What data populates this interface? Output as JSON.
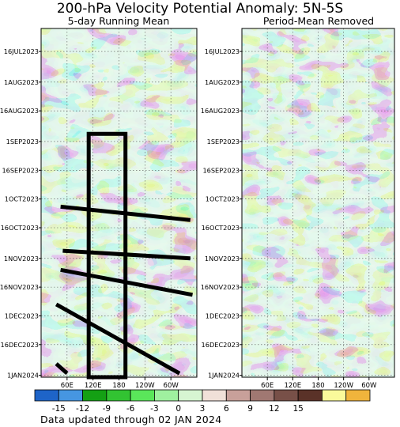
{
  "chart_data": [
    {
      "type": "heatmap",
      "title": "200-hPa Velocity Potential Anomaly: 5N-5S",
      "subtitle": "5-day Running Mean",
      "x_ticks": [
        "60E",
        "120E",
        "180",
        "120W",
        "60W"
      ],
      "y_ticks": [
        "16JUL2023",
        "1AUG2023",
        "16AUG2023",
        "1SEP2023",
        "16SEP2023",
        "1OCT2023",
        "16OCT2023",
        "1NOV2023",
        "16NOV2023",
        "1DEC2023",
        "16DEC2023",
        "1JAN2024"
      ],
      "xlim": [
        0,
        360
      ],
      "ylim": [
        "2023-07-04",
        "2024-01-02"
      ],
      "annotations": {
        "rectangle": {
          "x": [
            110,
            195
          ],
          "y": [
            "2023-08-28",
            "2024-01-02"
          ]
        },
        "lines": [
          {
            "x": [
              45,
              345
            ],
            "y": [
              "2023-10-05",
              "2023-10-12"
            ]
          },
          {
            "x": [
              50,
              345
            ],
            "y": [
              "2023-10-28",
              "2023-11-01"
            ]
          },
          {
            "x": [
              45,
              350
            ],
            "y": [
              "2023-11-07",
              "2023-11-20"
            ]
          },
          {
            "x": [
              35,
              320
            ],
            "y": [
              "2023-11-25",
              "2023-12-31"
            ]
          },
          {
            "x": [
              35,
              60
            ],
            "y": [
              "2023-12-26",
              "2023-12-31"
            ]
          }
        ]
      }
    },
    {
      "type": "heatmap",
      "subtitle": "Period-Mean Removed",
      "x_ticks": [
        "60E",
        "120E",
        "180",
        "120W",
        "60W"
      ],
      "y_ticks": [
        "16JUL2023",
        "1AUG2023",
        "16AUG2023",
        "1SEP2023",
        "16SEP2023",
        "1OCT2023",
        "16OCT2023",
        "1NOV2023",
        "16NOV2023",
        "1DEC2023",
        "16DEC2023",
        "1JAN2024"
      ],
      "xlim": [
        0,
        360
      ],
      "ylim": [
        "2023-07-04",
        "2024-01-02"
      ]
    }
  ],
  "colorbar": {
    "ticks": [
      "-15",
      "-12",
      "-9",
      "-6",
      "-3",
      "0",
      "3",
      "6",
      "9",
      "12",
      "15"
    ],
    "colors": [
      "#1e64c8",
      "#4696e1",
      "#14a014",
      "#32c332",
      "#5ae65a",
      "#9ff09f",
      "#d7f5d2",
      "#f0e0d8",
      "#c8a09a",
      "#a07872",
      "#785048",
      "#5a3228",
      "#fafa9b",
      "#f0b43c"
    ]
  },
  "footer": "Data updated through 02 JAN 2024"
}
